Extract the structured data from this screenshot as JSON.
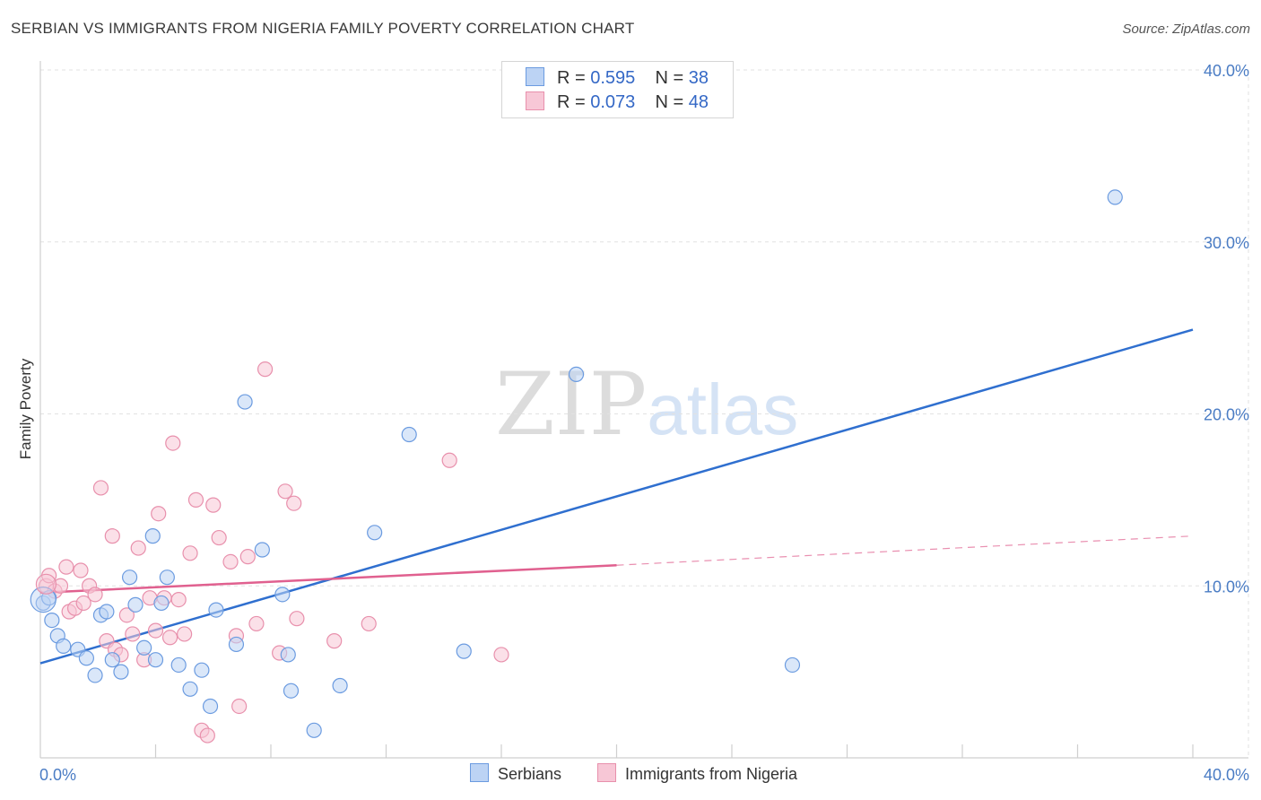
{
  "title": "SERBIAN VS IMMIGRANTS FROM NIGERIA FAMILY POVERTY CORRELATION CHART",
  "source": "Source: ZipAtlas.com",
  "watermark": {
    "zip": "ZIP",
    "atlas": "atlas"
  },
  "legend": {
    "rows": [
      {
        "r_label": "R = ",
        "r_value": "0.595",
        "n_label": "N = ",
        "n_value": "38"
      },
      {
        "r_label": "R = ",
        "r_value": "0.073",
        "n_label": "N = ",
        "n_value": "48"
      }
    ]
  },
  "bottom_legend": {
    "serbians": "Serbians",
    "nigeria": "Immigrants from Nigeria"
  },
  "chart_data": {
    "type": "scatter",
    "title": "SERBIAN VS IMMIGRANTS FROM NIGERIA FAMILY POVERTY CORRELATION CHART",
    "xlabel": "",
    "ylabel": "Family Poverty",
    "xlim": [
      0,
      40
    ],
    "ylim": [
      0,
      40
    ],
    "x_tick_labels": [
      "0.0%",
      "40.0%"
    ],
    "y_ticks": [
      10,
      20,
      30,
      40
    ],
    "y_tick_labels": [
      "10.0%",
      "20.0%",
      "30.0%",
      "40.0%"
    ],
    "colors": {
      "serbians": "#6b9be0",
      "serbians_fill": "#bcd3f4",
      "nigeria": "#e890ac",
      "nigeria_fill": "#f7c7d6",
      "blue_line": "#2f6fcf",
      "pink_line": "#e0608f"
    },
    "series": [
      {
        "name": "Serbians",
        "r": 0.595,
        "n": 38,
        "trend": {
          "x0": 0,
          "y0": 5.5,
          "x1": 40,
          "y1": 24.9
        },
        "points": [
          [
            0.1,
            9.0
          ],
          [
            0.4,
            8.0
          ],
          [
            0.6,
            7.1
          ],
          [
            0.8,
            6.5
          ],
          [
            1.3,
            6.3
          ],
          [
            1.6,
            5.8
          ],
          [
            1.9,
            4.8
          ],
          [
            2.1,
            8.3
          ],
          [
            2.3,
            8.5
          ],
          [
            2.5,
            5.7
          ],
          [
            2.8,
            5.0
          ],
          [
            3.1,
            10.5
          ],
          [
            3.3,
            8.9
          ],
          [
            3.6,
            6.4
          ],
          [
            3.9,
            12.9
          ],
          [
            4.0,
            5.7
          ],
          [
            4.2,
            9.0
          ],
          [
            4.4,
            10.5
          ],
          [
            4.8,
            5.4
          ],
          [
            5.2,
            4.0
          ],
          [
            5.6,
            5.1
          ],
          [
            5.9,
            3.0
          ],
          [
            6.1,
            8.6
          ],
          [
            6.8,
            6.6
          ],
          [
            7.1,
            20.7
          ],
          [
            7.7,
            12.1
          ],
          [
            8.4,
            9.5
          ],
          [
            8.6,
            6.0
          ],
          [
            8.7,
            3.9
          ],
          [
            9.5,
            1.6
          ],
          [
            10.4,
            4.2
          ],
          [
            11.6,
            13.1
          ],
          [
            12.8,
            18.8
          ],
          [
            14.7,
            6.2
          ],
          [
            18.6,
            22.3
          ],
          [
            26.1,
            5.4
          ],
          [
            37.3,
            32.6
          ],
          [
            0.3,
            9.3
          ]
        ]
      },
      {
        "name": "Immigrants from Nigeria",
        "r": 0.073,
        "n": 48,
        "trend": {
          "x0": 0,
          "y0": 9.6,
          "x1": 20,
          "y1": 11.2,
          "dash_x1": 40,
          "dash_y1": 12.9
        },
        "points": [
          [
            0.2,
            10.0
          ],
          [
            0.3,
            10.6
          ],
          [
            0.5,
            9.7
          ],
          [
            0.7,
            10.0
          ],
          [
            0.9,
            11.1
          ],
          [
            1.0,
            8.5
          ],
          [
            1.2,
            8.7
          ],
          [
            1.4,
            10.9
          ],
          [
            1.5,
            9.0
          ],
          [
            1.7,
            10.0
          ],
          [
            1.9,
            9.5
          ],
          [
            2.1,
            15.7
          ],
          [
            2.3,
            6.8
          ],
          [
            2.5,
            12.9
          ],
          [
            2.6,
            6.3
          ],
          [
            2.8,
            6.0
          ],
          [
            3.0,
            8.3
          ],
          [
            3.2,
            7.2
          ],
          [
            3.4,
            12.2
          ],
          [
            3.6,
            5.7
          ],
          [
            3.8,
            9.3
          ],
          [
            4.0,
            7.4
          ],
          [
            4.1,
            14.2
          ],
          [
            4.3,
            9.3
          ],
          [
            4.5,
            7.0
          ],
          [
            4.6,
            18.3
          ],
          [
            4.8,
            9.2
          ],
          [
            5.0,
            7.2
          ],
          [
            5.2,
            11.9
          ],
          [
            5.4,
            15.0
          ],
          [
            5.6,
            1.6
          ],
          [
            5.8,
            1.3
          ],
          [
            6.0,
            14.7
          ],
          [
            6.2,
            12.8
          ],
          [
            6.6,
            11.4
          ],
          [
            6.8,
            7.1
          ],
          [
            6.9,
            3.0
          ],
          [
            7.2,
            11.7
          ],
          [
            7.5,
            7.8
          ],
          [
            7.8,
            22.6
          ],
          [
            8.3,
            6.1
          ],
          [
            8.5,
            15.5
          ],
          [
            8.8,
            14.8
          ],
          [
            8.9,
            8.1
          ],
          [
            10.2,
            6.8
          ],
          [
            11.4,
            7.8
          ],
          [
            14.2,
            17.3
          ],
          [
            16.0,
            6.0
          ]
        ]
      }
    ]
  }
}
